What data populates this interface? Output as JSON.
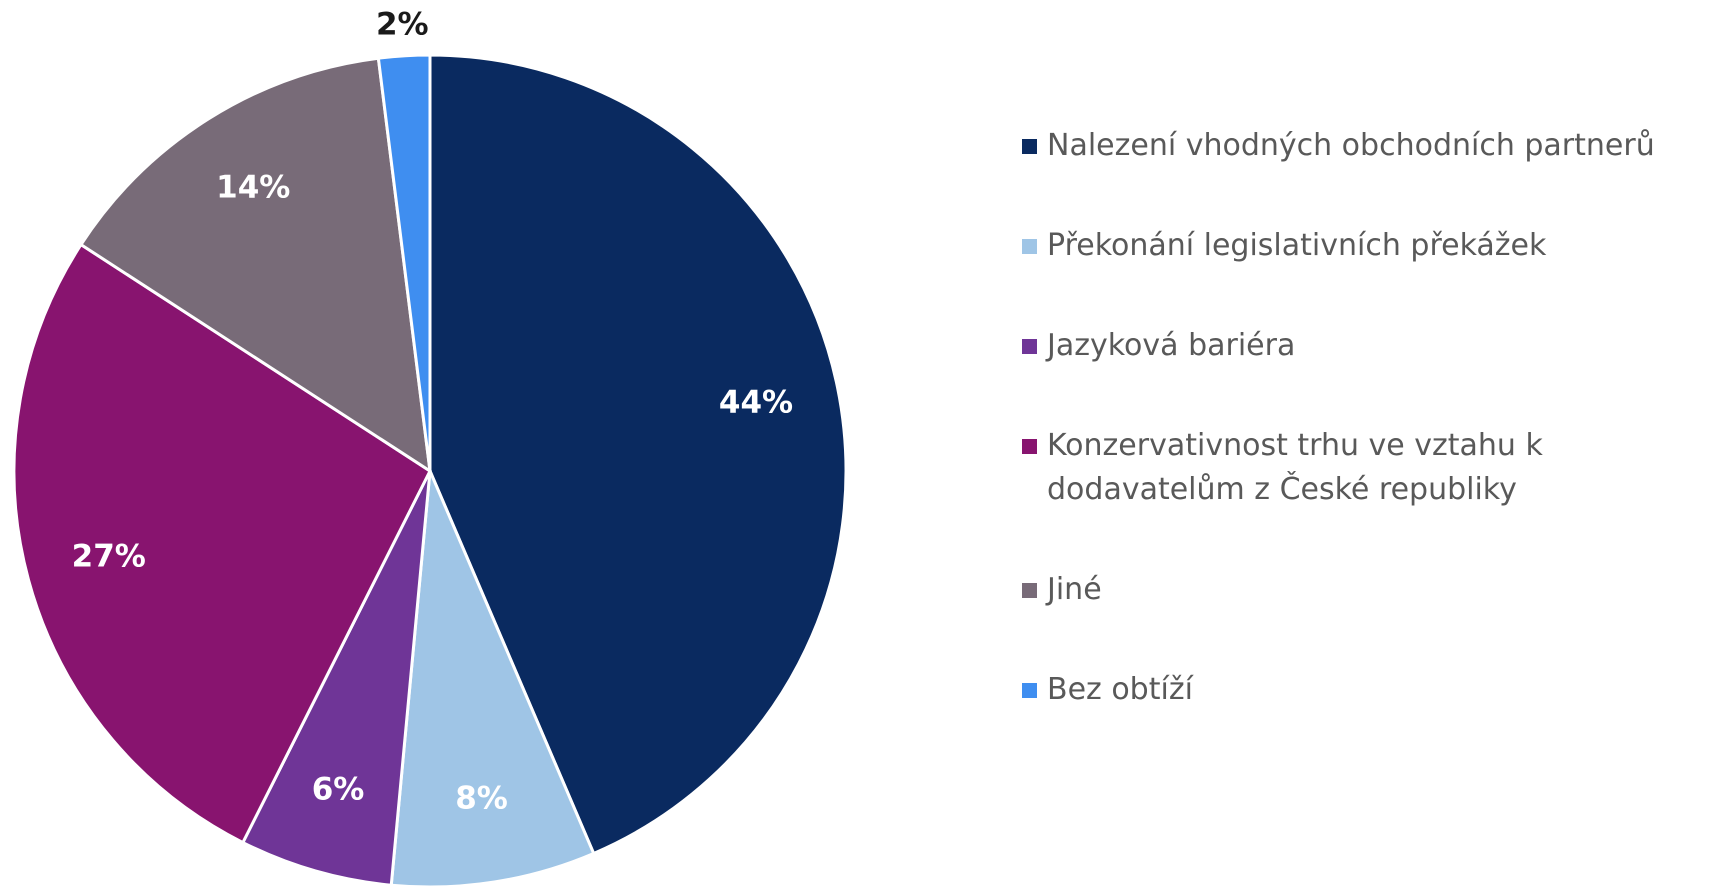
{
  "chart_data": {
    "type": "pie",
    "categories": [
      "Nalezení vhodných obchodních partnerů",
      "Překonání legislativních překážek",
      "Jazyková bariéra",
      "Konzervativnost trhu ve vztahu k dodavatelům z České republiky",
      "Jiné",
      "Bez obtíží"
    ],
    "values": [
      44,
      8,
      6,
      27,
      14,
      2
    ],
    "value_labels": [
      "44%",
      "8%",
      "6%",
      "27%",
      "14%",
      "2%"
    ],
    "colors": [
      "#0a2a60",
      "#9fc5e6",
      "#6f3597",
      "#88146f",
      "#786b78",
      "#3f8ef0"
    ],
    "legend": "right"
  }
}
